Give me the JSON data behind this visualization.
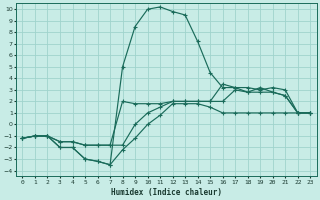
{
  "xlabel": "Humidex (Indice chaleur)",
  "bg_color": "#c8ece6",
  "grid_color": "#a0d4cc",
  "line_color": "#1a6b5a",
  "xlim": [
    -0.5,
    23.5
  ],
  "ylim": [
    -4.5,
    10.5
  ],
  "xtick_labels": [
    "0",
    "1",
    "2",
    "3",
    "4",
    "5",
    "6",
    "7",
    "8",
    "9",
    "10",
    "11",
    "12",
    "13",
    "14",
    "15",
    "16",
    "17",
    "18",
    "19",
    "20",
    "21",
    "22",
    "23"
  ],
  "xticks": [
    0,
    1,
    2,
    3,
    4,
    5,
    6,
    7,
    8,
    9,
    10,
    11,
    12,
    13,
    14,
    15,
    16,
    17,
    18,
    19,
    20,
    21,
    22,
    23
  ],
  "yticks": [
    -4,
    -3,
    -2,
    -1,
    0,
    1,
    2,
    3,
    4,
    5,
    6,
    7,
    8,
    9,
    10
  ],
  "line1_x": [
    0,
    1,
    2,
    3,
    4,
    5,
    6,
    7,
    8,
    9,
    10,
    11,
    12,
    13,
    14,
    15,
    16,
    17,
    18,
    19,
    20,
    21,
    22,
    23
  ],
  "line1_y": [
    -1.2,
    -1.0,
    -1.0,
    -2.0,
    -2.0,
    -3.0,
    -3.2,
    -3.5,
    -2.2,
    -1.2,
    0.0,
    0.8,
    1.8,
    1.8,
    1.8,
    1.5,
    1.0,
    1.0,
    1.0,
    1.0,
    1.0,
    1.0,
    1.0,
    1.0
  ],
  "line2_x": [
    0,
    1,
    2,
    3,
    4,
    5,
    6,
    7,
    8,
    9,
    10,
    11,
    12,
    13,
    14,
    15,
    16,
    17,
    18,
    19,
    20,
    21,
    22,
    23
  ],
  "line2_y": [
    -1.2,
    -1.0,
    -1.0,
    -1.5,
    -1.5,
    -1.8,
    -1.8,
    -1.8,
    2.0,
    1.8,
    1.8,
    1.8,
    2.0,
    2.0,
    2.0,
    2.0,
    2.0,
    3.0,
    2.8,
    2.8,
    2.8,
    2.5,
    1.0,
    1.0
  ],
  "line3_x": [
    0,
    1,
    2,
    3,
    4,
    5,
    6,
    7,
    8,
    9,
    10,
    11,
    12,
    13,
    14,
    15,
    16,
    17,
    18,
    19,
    20,
    21,
    22,
    23
  ],
  "line3_y": [
    -1.2,
    -1.0,
    -1.0,
    -1.5,
    -1.5,
    -1.8,
    -1.8,
    -1.8,
    -1.8,
    0.0,
    1.0,
    1.5,
    2.0,
    2.0,
    2.0,
    2.0,
    3.5,
    3.2,
    3.2,
    3.0,
    3.2,
    3.0,
    1.0,
    1.0
  ],
  "line4_x": [
    0,
    1,
    2,
    3,
    4,
    5,
    6,
    7,
    8,
    9,
    10,
    11,
    12,
    13,
    14,
    15,
    16,
    17,
    18,
    19,
    20,
    21,
    22,
    23
  ],
  "line4_y": [
    -1.2,
    -1.0,
    -1.0,
    -2.0,
    -2.0,
    -3.0,
    -3.2,
    -3.5,
    5.0,
    8.5,
    10.0,
    10.2,
    9.8,
    9.5,
    7.2,
    4.5,
    3.2,
    3.2,
    2.8,
    3.2,
    2.8,
    2.5,
    1.0,
    1.0
  ]
}
